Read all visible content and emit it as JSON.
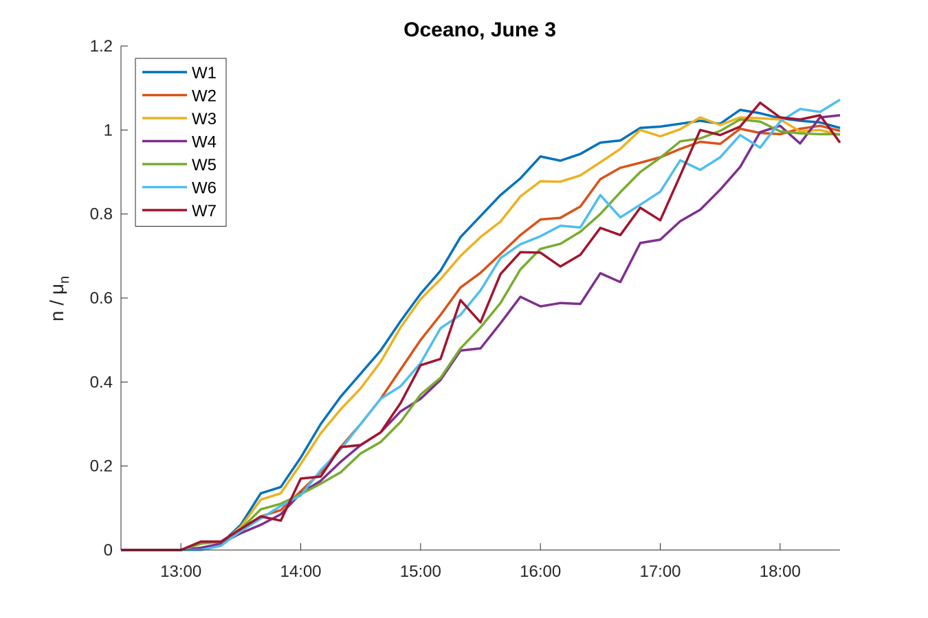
{
  "chart_data": {
    "type": "line",
    "title": "Oceano, June 3",
    "xlabel": "",
    "ylabel": "n / μ",
    "ylabel_subscript": "n",
    "xlim": [
      "12:30",
      "18:30"
    ],
    "ylim": [
      0,
      1.2
    ],
    "x_ticks": [
      "13:00",
      "14:00",
      "15:00",
      "16:00",
      "17:00",
      "18:00"
    ],
    "y_ticks": [
      "0",
      "0.2",
      "0.4",
      "0.6",
      "0.8",
      "1",
      "1.2"
    ],
    "legend_position": "top-left",
    "grid": false,
    "x": [
      "12:30",
      "12:40",
      "12:50",
      "13:00",
      "13:10",
      "13:20",
      "13:30",
      "13:40",
      "13:50",
      "14:00",
      "14:10",
      "14:20",
      "14:30",
      "14:40",
      "14:50",
      "15:00",
      "15:10",
      "15:20",
      "15:30",
      "15:40",
      "15:50",
      "16:00",
      "16:10",
      "16:20",
      "16:30",
      "16:40",
      "16:50",
      "17:00",
      "17:10",
      "17:20",
      "17:30",
      "17:40",
      "17:50",
      "18:00",
      "18:10",
      "18:20",
      "18:30"
    ],
    "series": [
      {
        "name": "W1",
        "color": "#0072BD",
        "values": [
          0,
          0,
          0,
          0,
          0.005,
          0.015,
          0.06,
          0.135,
          0.15,
          0.22,
          0.3,
          0.365,
          0.42,
          0.475,
          0.545,
          0.61,
          0.665,
          0.745,
          0.795,
          0.845,
          0.885,
          0.937,
          0.927,
          0.943,
          0.97,
          0.975,
          1.005,
          1.008,
          1.015,
          1.022,
          1.015,
          1.048,
          1.04,
          1.028,
          1.022,
          1.018,
          1.005
        ]
      },
      {
        "name": "W2",
        "color": "#D95319",
        "values": [
          0,
          0,
          0,
          0,
          0.005,
          0.015,
          0.05,
          0.08,
          0.095,
          0.14,
          0.185,
          0.245,
          0.3,
          0.36,
          0.43,
          0.5,
          0.56,
          0.625,
          0.66,
          0.705,
          0.75,
          0.787,
          0.791,
          0.818,
          0.883,
          0.91,
          0.922,
          0.935,
          0.955,
          0.972,
          0.967,
          1.003,
          0.993,
          0.99,
          1.003,
          1.01,
          0.998
        ]
      },
      {
        "name": "W3",
        "color": "#EDB120",
        "values": [
          0,
          0,
          0,
          0,
          0.005,
          0.015,
          0.055,
          0.12,
          0.135,
          0.205,
          0.278,
          0.335,
          0.385,
          0.448,
          0.53,
          0.597,
          0.645,
          0.7,
          0.745,
          0.782,
          0.842,
          0.878,
          0.877,
          0.892,
          0.923,
          0.955,
          1.0,
          0.985,
          1.002,
          1.03,
          1.012,
          1.03,
          1.028,
          1.025,
          0.997,
          1.0,
          0.988
        ]
      },
      {
        "name": "W4",
        "color": "#7E2F8E",
        "values": [
          0,
          0,
          0,
          0,
          0.005,
          0.015,
          0.04,
          0.06,
          0.085,
          0.135,
          0.165,
          0.21,
          0.25,
          0.28,
          0.33,
          0.36,
          0.405,
          0.475,
          0.48,
          0.54,
          0.603,
          0.58,
          0.588,
          0.586,
          0.659,
          0.638,
          0.731,
          0.739,
          0.783,
          0.81,
          0.858,
          0.912,
          0.995,
          1.01,
          0.968,
          1.03,
          1.035
        ]
      },
      {
        "name": "W5",
        "color": "#77AC30",
        "values": [
          0,
          0,
          0,
          0,
          0.015,
          0.02,
          0.05,
          0.097,
          0.11,
          0.133,
          0.158,
          0.185,
          0.23,
          0.257,
          0.305,
          0.37,
          0.41,
          0.48,
          0.53,
          0.588,
          0.668,
          0.717,
          0.729,
          0.758,
          0.8,
          0.852,
          0.9,
          0.934,
          0.973,
          0.98,
          0.998,
          1.025,
          1.02,
          0.997,
          0.992,
          0.99,
          0.99
        ]
      },
      {
        "name": "W6",
        "color": "#4DBEEE",
        "values": [
          0,
          0,
          0,
          0,
          0,
          0.01,
          0.045,
          0.075,
          0.105,
          0.13,
          0.19,
          0.24,
          0.3,
          0.36,
          0.39,
          0.445,
          0.528,
          0.56,
          0.618,
          0.695,
          0.728,
          0.747,
          0.772,
          0.768,
          0.845,
          0.792,
          0.822,
          0.853,
          0.928,
          0.905,
          0.935,
          0.988,
          0.958,
          1.02,
          1.05,
          1.043,
          1.072
        ]
      },
      {
        "name": "W7",
        "color": "#A2142F",
        "values": [
          0,
          0,
          0,
          0,
          0.02,
          0.02,
          0.05,
          0.08,
          0.07,
          0.17,
          0.175,
          0.245,
          0.25,
          0.28,
          0.35,
          0.44,
          0.455,
          0.595,
          0.542,
          0.657,
          0.709,
          0.708,
          0.675,
          0.703,
          0.767,
          0.75,
          0.815,
          0.785,
          0.892,
          1.0,
          0.988,
          1.008,
          1.065,
          1.03,
          1.025,
          1.035,
          0.97
        ]
      }
    ]
  }
}
